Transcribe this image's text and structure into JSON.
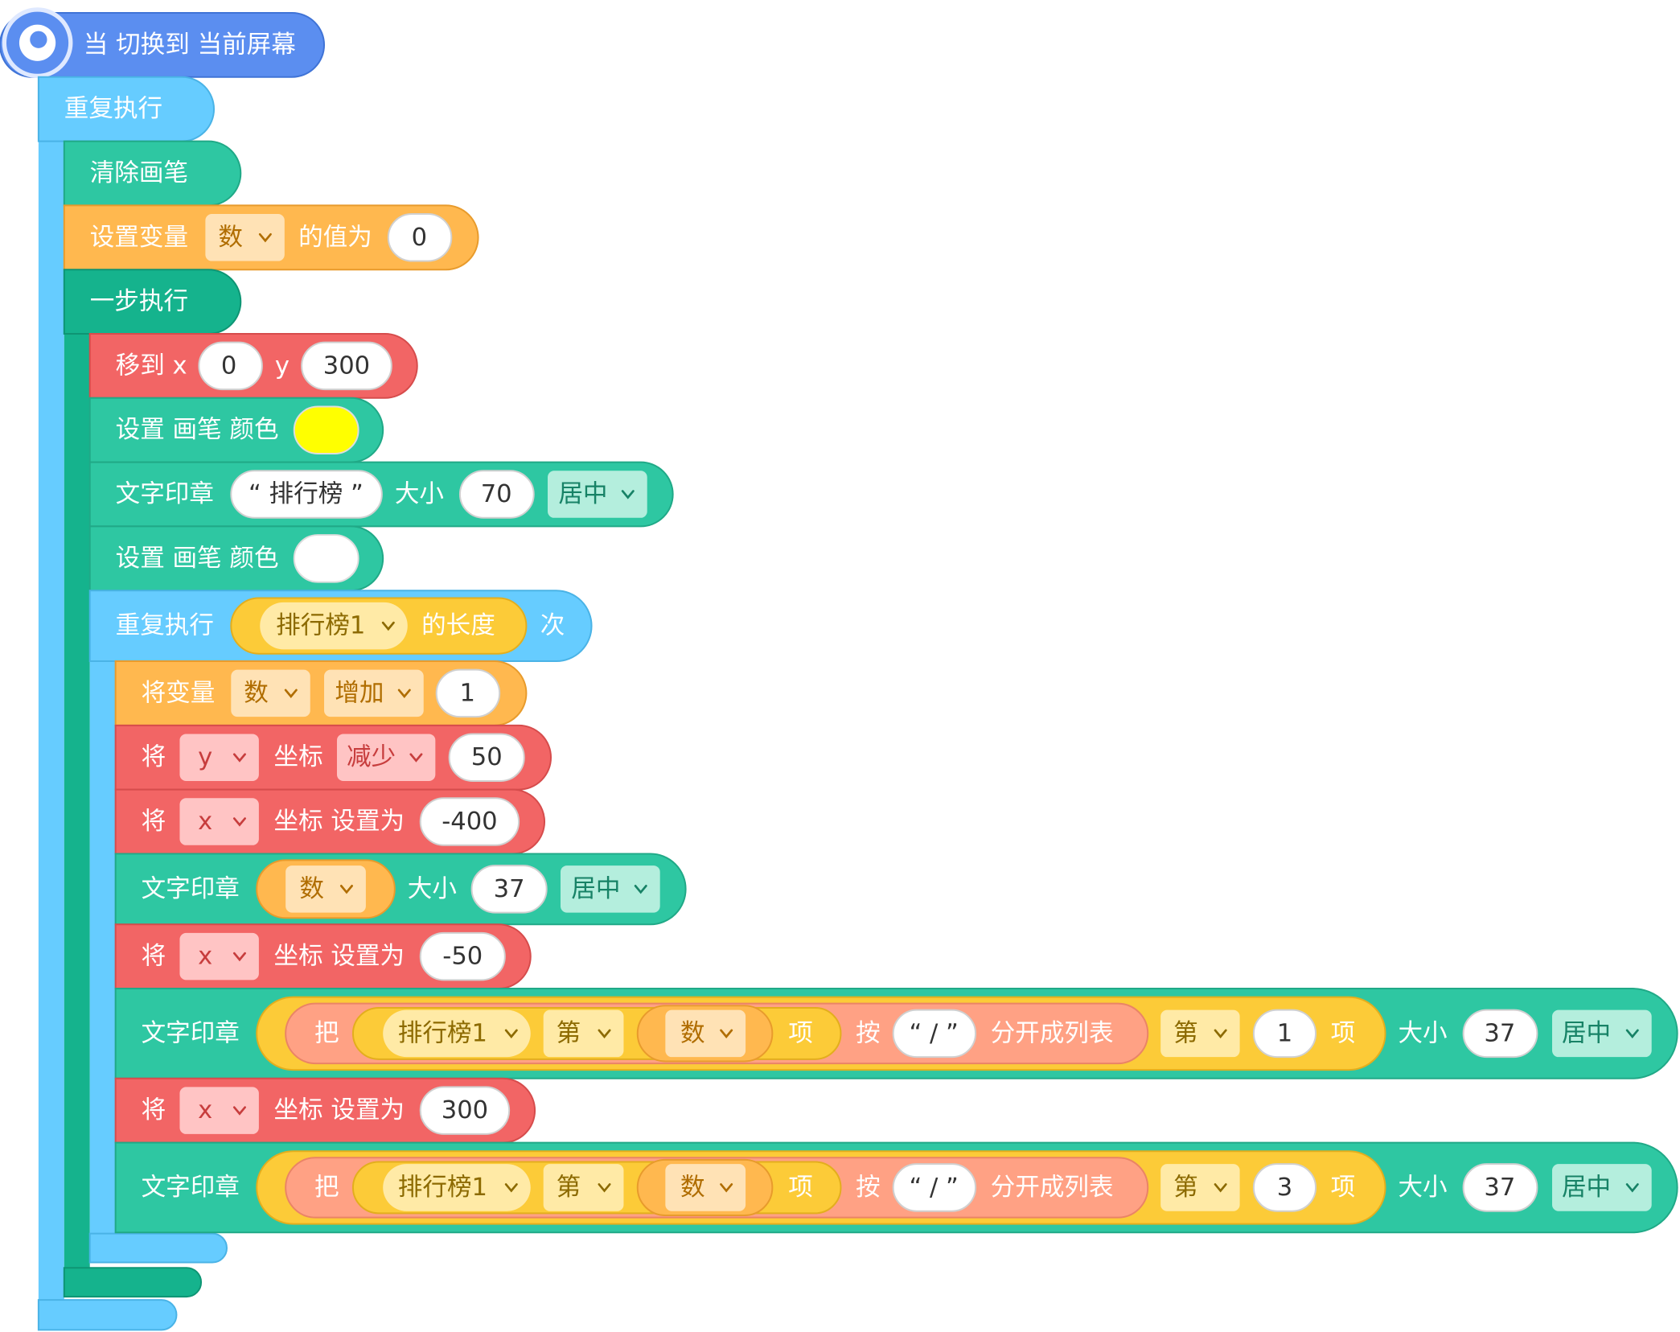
{
  "hat": {
    "text": "当 切换到 当前屏幕"
  },
  "blocks": [
    {
      "parts": [
        "重复执行"
      ]
    },
    {
      "parts": [
        "清除画笔"
      ]
    },
    {
      "parts": [
        "设置变量",
        "数",
        "的值为",
        "0"
      ]
    },
    {
      "parts": [
        "一步执行"
      ]
    },
    {
      "parts": [
        "移到 x",
        "0",
        "y",
        "300"
      ]
    },
    {
      "parts": [
        "设置 画笔 颜色"
      ],
      "color": "#ffff00"
    },
    {
      "parts": [
        "文字印章",
        "“ 排行榜 ”",
        "大小",
        "70",
        "居中"
      ]
    },
    {
      "parts": [
        "设置 画笔 颜色"
      ],
      "color": "#ffffff"
    },
    {
      "parts": [
        "重复执行",
        "排行榜1",
        "的长度",
        "次"
      ]
    },
    {
      "parts": [
        "将变量",
        "数",
        "增加",
        "1"
      ]
    },
    {
      "parts": [
        "将",
        "y",
        "坐标",
        "减少",
        "50"
      ]
    },
    {
      "parts": [
        "将",
        "x",
        "坐标 设置为",
        "-400"
      ]
    },
    {
      "parts": [
        "文字印章",
        "数",
        "大小",
        "37",
        "居中"
      ]
    },
    {
      "parts": [
        "将",
        "x",
        "坐标 设置为",
        "-50"
      ]
    },
    {
      "parts": [
        "文字印章",
        "把",
        "排行榜1",
        "第",
        "数",
        "项",
        "按",
        "“ / ”",
        "分开成列表",
        "第",
        "1",
        "项",
        "大小",
        "37",
        "居中"
      ]
    },
    {
      "parts": [
        "将",
        "x",
        "坐标 设置为",
        "300"
      ]
    },
    {
      "parts": [
        "文字印章",
        "把",
        "排行榜1",
        "第",
        "数",
        "项",
        "按",
        "“ / ”",
        "分开成列表",
        "第",
        "3",
        "项",
        "大小",
        "37",
        "居中"
      ]
    }
  ]
}
